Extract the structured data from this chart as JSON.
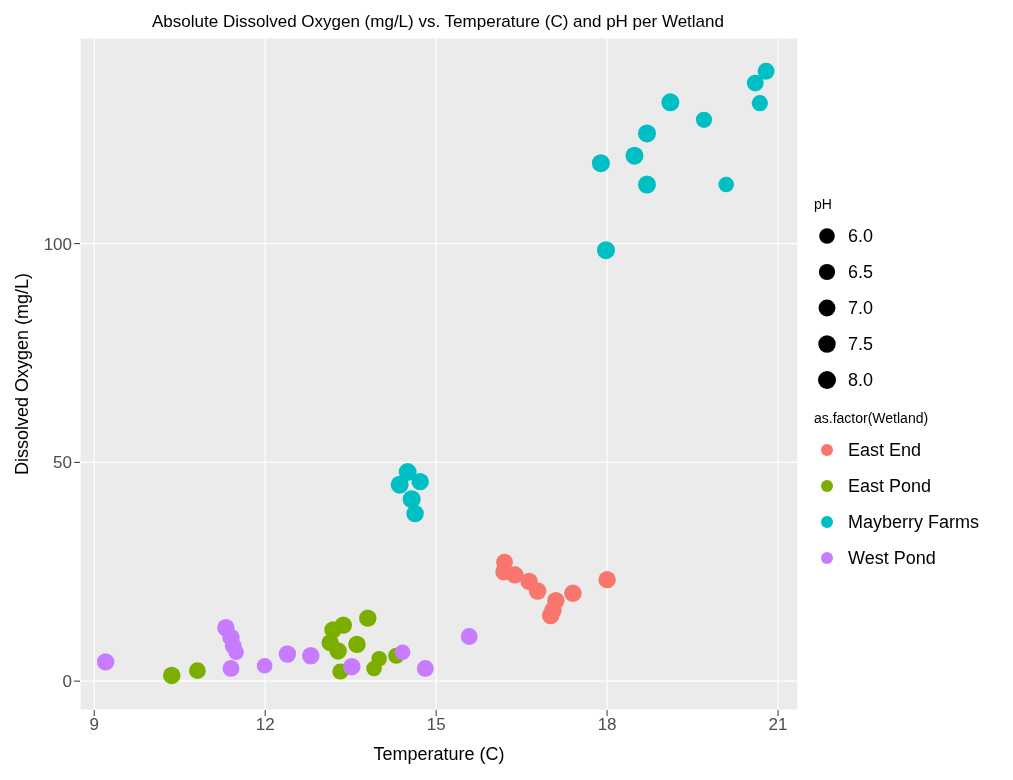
{
  "chart_data": {
    "type": "bubble",
    "title": "Absolute Dissolved Oxygen (mg/L) vs. Temperature (C) and pH per Wetland",
    "xlabel": "Temperature (C)",
    "ylabel": "Dissolved Oxygen (mg/L)",
    "legend_title": "as.factor(Wetland)",
    "annotations": [
      "pH"
    ],
    "xlim": [
      8.75,
      21.35
    ],
    "ylim": [
      -6.6,
      147
    ],
    "xticks": [
      9,
      12,
      15,
      18,
      21
    ],
    "yticks": [
      0,
      50,
      100
    ],
    "grid": true,
    "legend": "right",
    "marker": "circle",
    "size_legend": [
      {
        "value": 6,
        "label": "6.0"
      },
      {
        "value": 6.5,
        "label": "6.5"
      },
      {
        "value": 7,
        "label": "7.0"
      },
      {
        "value": 7.5,
        "label": "7.5"
      },
      {
        "value": 8,
        "label": "8.0"
      }
    ],
    "series": [
      {
        "name": "East End",
        "color": "#f8766d",
        "x": [
          16.2,
          16.19,
          16.38,
          16.63,
          16.78,
          17.1,
          17.05,
          17.01,
          17.4,
          18.0
        ],
        "values": [
          27.2,
          25.0,
          24.3,
          22.8,
          20.6,
          18.4,
          16.2,
          15.0,
          20.1,
          23.2
        ],
        "sizes": [
          7.0,
          7.5,
          7.5,
          7.5,
          7.5,
          7.5,
          7.5,
          7.5,
          7.5,
          7.5
        ]
      },
      {
        "name": "East Pond",
        "color": "#7cae00",
        "x": [
          10.36,
          10.81,
          13.37,
          13.19,
          13.14,
          13.28,
          13.61,
          13.8,
          13.32,
          14.0,
          13.91,
          14.3
        ],
        "values": [
          1.3,
          2.4,
          12.8,
          11.7,
          8.8,
          6.9,
          8.4,
          14.4,
          2.2,
          5.1,
          2.9,
          5.8
        ],
        "sizes": [
          7.5,
          7.0,
          7.5,
          7.5,
          7.5,
          7.5,
          7.5,
          7.5,
          6.5,
          6.0,
          6.0,
          6.5
        ]
      },
      {
        "name": "Mayberry Farms",
        "color": "#00bfc4",
        "x": [
          14.5,
          14.36,
          14.72,
          14.57,
          14.63,
          20.6,
          20.68,
          20.79,
          19.11,
          19.7,
          18.7,
          18.48,
          17.89,
          18.7,
          20.09,
          17.98
        ],
        "values": [
          47.8,
          44.9,
          45.6,
          41.6,
          38.3,
          136.7,
          132.1,
          139.4,
          132.3,
          128.3,
          125.2,
          120.1,
          118.4,
          113.5,
          113.5,
          98.5
        ],
        "sizes": [
          8.0,
          8.0,
          7.5,
          8.0,
          7.5,
          7.0,
          6.5,
          7.0,
          8.0,
          6.5,
          8.0,
          8.0,
          8.0,
          8.0,
          6.0,
          8.0
        ]
      },
      {
        "name": "West Pond",
        "color": "#c77cff",
        "x": [
          9.2,
          11.31,
          11.4,
          11.44,
          11.49,
          11.4,
          11.99,
          12.39,
          12.8,
          13.52,
          14.41,
          14.81,
          15.58
        ],
        "values": [
          4.4,
          12.2,
          10.0,
          8.0,
          6.6,
          2.9,
          3.5,
          6.2,
          5.8,
          3.3,
          6.6,
          2.9,
          10.2
        ],
        "sizes": [
          7.5,
          7.5,
          7.5,
          7.0,
          6.0,
          7.0,
          6.0,
          7.5,
          7.5,
          7.5,
          6.0,
          7.0,
          7.0
        ]
      }
    ]
  }
}
